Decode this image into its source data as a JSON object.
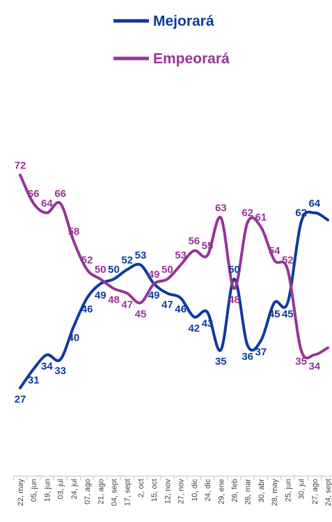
{
  "chart_data": {
    "type": "line",
    "title": "",
    "xlabel": "",
    "ylabel": "",
    "categories": [
      "22, may",
      "05, jun",
      "19, jun",
      "03, jul",
      "24, jul",
      "07, ago",
      "21, ago",
      "04, sept",
      "17, sept",
      "2, oct",
      "15, oct",
      "12, nov",
      "27, nov",
      "10, dic",
      "24, dic",
      "29, ene",
      "26, feb",
      "26, mar",
      "30, abr",
      "28, may",
      "25, jun",
      "30, jul",
      "27, ago",
      "24, sept"
    ],
    "series": [
      {
        "name": "Mejorará",
        "color": "#0E3A9E",
        "values": [
          27,
          31,
          34,
          33,
          40,
          46,
          49,
          50,
          52,
          53,
          49,
          47,
          46,
          42,
          43,
          35,
          50,
          36,
          37,
          45,
          45,
          62,
          64,
          null
        ]
      },
      {
        "name": "Empeorará",
        "color": "#993399",
        "values": [
          72,
          66,
          64,
          66,
          58,
          52,
          50,
          48,
          47,
          45,
          49,
          50,
          53,
          56,
          55,
          63,
          48,
          62,
          61,
          54,
          52,
          35,
          34,
          null
        ]
      }
    ],
    "ylim": [
      20,
      80
    ],
    "grid": false,
    "legend_position": "top-center"
  }
}
